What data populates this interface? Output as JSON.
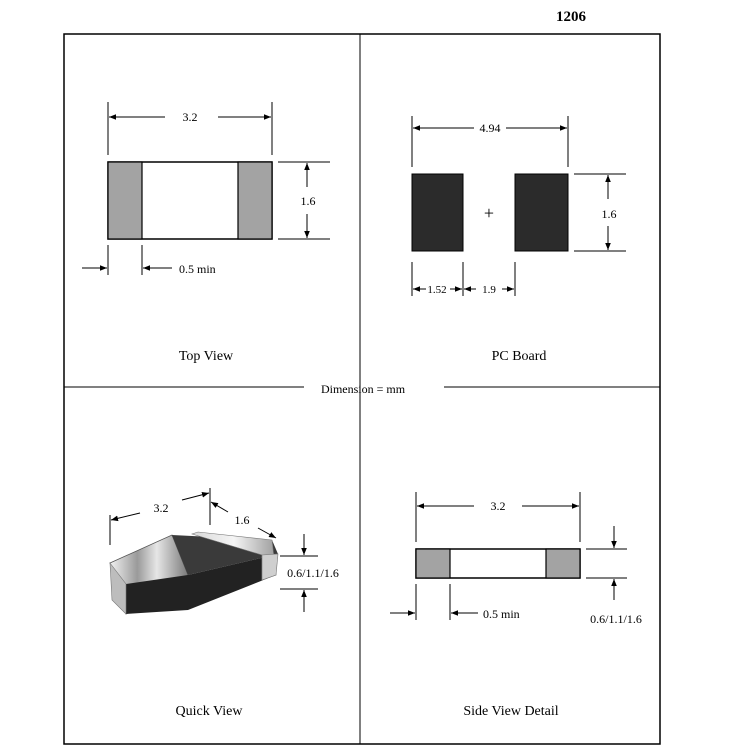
{
  "title": "1206",
  "dimension_note": "Dimension = mm",
  "colors": {
    "terminal": "#a3a3a3",
    "pad": "#2b2b2b",
    "chip_top": "#3a3a3a",
    "chip_front": "#222222"
  },
  "panels": {
    "top_view": {
      "caption": "Top View",
      "length": "3.2",
      "width": "1.6",
      "terminal_min": "0.5 min"
    },
    "pc_board": {
      "caption": "PC Board",
      "overall": "4.94",
      "height": "1.6",
      "pad_width": "1.52",
      "gap": "1.9",
      "center_mark": "+"
    },
    "quick_view": {
      "caption": "Quick View",
      "length": "3.2",
      "width": "1.6",
      "thickness": "0.6/1.1/1.6"
    },
    "side_view": {
      "caption": "Side View Detail",
      "length": "3.2",
      "terminal_min": "0.5 min",
      "thickness": "0.6/1.1/1.6"
    }
  }
}
